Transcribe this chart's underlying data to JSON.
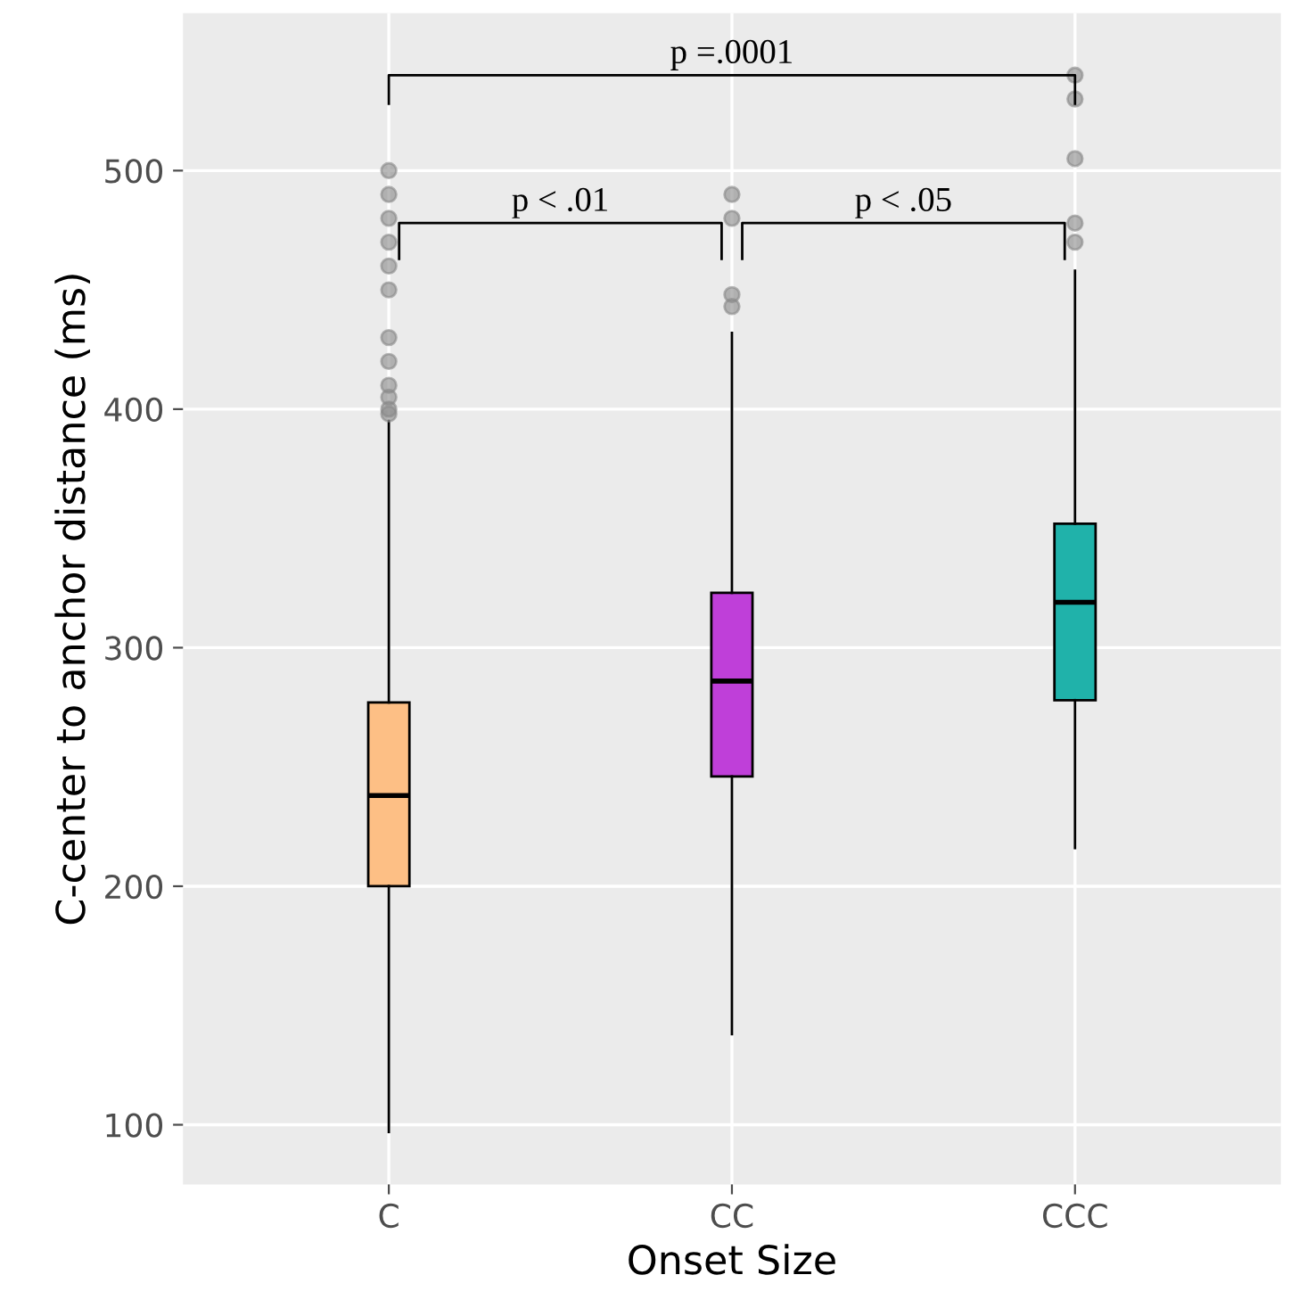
{
  "chart_data": {
    "type": "box",
    "xlabel": "Onset Size",
    "ylabel": "C-center to anchor distance (ms)",
    "categories": [
      "C",
      "CC",
      "CCC"
    ],
    "colors": [
      "#fdbf85",
      "#bf3fd9",
      "#20b2aa"
    ],
    "boxes": [
      {
        "low": 97,
        "q1": 200,
        "median": 238,
        "q3": 277,
        "high": 395,
        "outliers": [
          398,
          400,
          405,
          410,
          420,
          430,
          450,
          460,
          470,
          480,
          490,
          500
        ]
      },
      {
        "low": 138,
        "q1": 246,
        "median": 286,
        "q3": 323,
        "high": 432,
        "outliers": [
          443,
          448,
          480,
          490
        ]
      },
      {
        "low": 216,
        "q1": 278,
        "median": 319,
        "q3": 352,
        "high": 458,
        "outliers": [
          470,
          478,
          505,
          530,
          540
        ]
      }
    ],
    "ylim": [
      75,
      566
    ],
    "yticks": [
      100,
      200,
      300,
      400,
      500
    ],
    "grid": true,
    "annotations": [
      "p < .01",
      "p < .05",
      "p =.0001"
    ]
  }
}
